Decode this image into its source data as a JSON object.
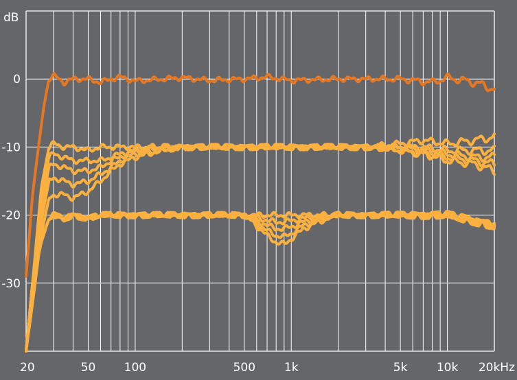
{
  "chart_data": {
    "type": "line",
    "title": "",
    "xlabel": "",
    "ylabel": "dB",
    "x_scale": "log",
    "xlim": [
      20,
      20000
    ],
    "ylim": [
      -40,
      10
    ],
    "grid": true,
    "x_ticks": [
      {
        "value": 20,
        "label": "20"
      },
      {
        "value": 50,
        "label": "50"
      },
      {
        "value": 100,
        "label": "100"
      },
      {
        "value": 500,
        "label": "500"
      },
      {
        "value": 1000,
        "label": "1k"
      },
      {
        "value": 5000,
        "label": "5k"
      },
      {
        "value": 10000,
        "label": "10k"
      },
      {
        "value": 20000,
        "label": "20kHz"
      }
    ],
    "y_ticks": [
      {
        "value": 0,
        "label": "0"
      },
      {
        "value": -10,
        "label": "-10"
      },
      {
        "value": -20,
        "label": "-20"
      },
      {
        "value": -30,
        "label": "-30"
      }
    ],
    "colors": {
      "background": "#64666a",
      "grid": "#ffffff",
      "series_dark": "#e87722",
      "series_light": "#fbb040"
    },
    "series": [
      {
        "color": "dark",
        "x": [
          20,
          22,
          24,
          26,
          28,
          30,
          35,
          40,
          50,
          60,
          70,
          80,
          100,
          150,
          200,
          300,
          500,
          700,
          1000,
          2000,
          5000,
          8000,
          10000,
          15000,
          20000
        ],
        "y": [
          -29,
          -17,
          -10,
          -4,
          0,
          0.5,
          -0.5,
          0,
          0,
          -0.5,
          0,
          0.3,
          -0.3,
          0,
          0.2,
          -0.2,
          0,
          0.3,
          -0.2,
          0,
          0,
          -0.5,
          0.2,
          -0.5,
          -1.5
        ]
      },
      {
        "color": "light",
        "x": [
          20,
          22,
          25,
          28,
          30,
          35,
          40,
          50,
          60,
          70,
          80,
          100,
          150,
          200,
          300,
          500,
          1000,
          2000,
          3000,
          5000,
          7000,
          10000,
          15000,
          20000
        ],
        "y": [
          -40,
          -30,
          -16,
          -10,
          -9.5,
          -10,
          -10,
          -10.5,
          -10,
          -10,
          -10,
          -10,
          -10,
          -10,
          -10,
          -10,
          -10,
          -10,
          -10,
          -9.5,
          -9,
          -9.5,
          -9,
          -8.5
        ]
      },
      {
        "color": "light",
        "x": [
          20,
          22,
          25,
          28,
          30,
          35,
          40,
          50,
          60,
          70,
          80,
          100,
          150,
          200,
          300,
          500,
          1000,
          2000,
          3000,
          5000,
          7000,
          10000,
          15000,
          20000
        ],
        "y": [
          -40,
          -30,
          -17,
          -11.5,
          -11,
          -11.5,
          -12,
          -12,
          -12,
          -11.5,
          -11,
          -10.5,
          -10,
          -10,
          -10,
          -10,
          -10,
          -10,
          -10,
          -10,
          -10,
          -10.5,
          -10.5,
          -10.5
        ]
      },
      {
        "color": "light",
        "x": [
          20,
          22,
          25,
          28,
          30,
          35,
          40,
          50,
          60,
          70,
          80,
          100,
          150,
          200,
          300,
          500,
          1000,
          2000,
          3000,
          5000,
          7000,
          10000,
          15000,
          20000
        ],
        "y": [
          -40,
          -31,
          -19,
          -13,
          -12.5,
          -13,
          -13.5,
          -13.5,
          -13,
          -12,
          -11.5,
          -10.5,
          -10,
          -10,
          -10,
          -10,
          -10,
          -10,
          -10,
          -10,
          -10.5,
          -11,
          -11.5,
          -11.5
        ]
      },
      {
        "color": "light",
        "x": [
          20,
          22,
          25,
          28,
          30,
          35,
          40,
          50,
          60,
          70,
          80,
          100,
          150,
          200,
          300,
          500,
          1000,
          2000,
          3000,
          5000,
          7000,
          10000,
          15000,
          20000
        ],
        "y": [
          -40,
          -32,
          -21,
          -15,
          -14.5,
          -15,
          -15.5,
          -15,
          -14,
          -13,
          -12,
          -11,
          -10.5,
          -10,
          -10,
          -10,
          -10,
          -10,
          -10,
          -10.5,
          -11,
          -11.5,
          -12,
          -12.5
        ]
      },
      {
        "color": "light",
        "x": [
          20,
          22,
          25,
          28,
          30,
          35,
          40,
          50,
          60,
          70,
          80,
          100,
          150,
          200,
          300,
          500,
          1000,
          2000,
          3000,
          5000,
          7000,
          10000,
          15000,
          20000
        ],
        "y": [
          -40,
          -33,
          -23,
          -17.5,
          -17,
          -17,
          -17.5,
          -16.5,
          -15,
          -13.5,
          -12.5,
          -11.5,
          -10.5,
          -10,
          -10,
          -10,
          -10,
          -10,
          -10,
          -10.5,
          -11,
          -12,
          -12.5,
          -13.5
        ]
      },
      {
        "color": "light",
        "x": [
          20,
          22,
          25,
          28,
          30,
          35,
          40,
          50,
          60,
          70,
          80,
          100,
          150,
          200,
          300,
          500,
          600,
          700,
          800,
          900,
          1000,
          1200,
          1500,
          2000,
          3000,
          5000,
          10000,
          20000
        ],
        "y": [
          -40,
          -30,
          -24,
          -20.5,
          -20,
          -20.5,
          -20,
          -20.5,
          -20,
          -20,
          -20,
          -20,
          -20,
          -20,
          -20,
          -20,
          -20,
          -20,
          -20,
          -20,
          -20,
          -20,
          -20,
          -20,
          -20,
          -20,
          -20,
          -21.5
        ]
      },
      {
        "color": "light",
        "x": [
          20,
          22,
          25,
          28,
          30,
          35,
          40,
          50,
          60,
          70,
          80,
          100,
          150,
          200,
          300,
          500,
          600,
          700,
          800,
          900,
          1000,
          1200,
          1500,
          2000,
          3000,
          5000,
          10000,
          20000
        ],
        "y": [
          -40,
          -30,
          -24,
          -20.5,
          -20,
          -20.5,
          -20,
          -20.5,
          -20,
          -20,
          -20,
          -20,
          -20,
          -20,
          -20,
          -20,
          -20.3,
          -20.8,
          -21,
          -21,
          -20.8,
          -20.5,
          -20.2,
          -20,
          -20,
          -20,
          -20,
          -21.5
        ]
      },
      {
        "color": "light",
        "x": [
          20,
          22,
          25,
          28,
          30,
          35,
          40,
          50,
          60,
          70,
          80,
          100,
          150,
          200,
          300,
          500,
          600,
          700,
          800,
          900,
          1000,
          1200,
          1500,
          2000,
          3000,
          5000,
          10000,
          20000
        ],
        "y": [
          -40,
          -30,
          -24,
          -20.5,
          -20,
          -20.5,
          -20,
          -20.5,
          -20,
          -20,
          -20,
          -20,
          -20,
          -20,
          -20,
          -20,
          -20.8,
          -21.5,
          -22,
          -22,
          -21.7,
          -21,
          -20.5,
          -20,
          -20,
          -20,
          -20,
          -21.5
        ]
      },
      {
        "color": "light",
        "x": [
          20,
          22,
          25,
          28,
          30,
          35,
          40,
          50,
          60,
          70,
          80,
          100,
          150,
          200,
          300,
          500,
          600,
          700,
          800,
          900,
          1000,
          1200,
          1500,
          2000,
          3000,
          5000,
          10000,
          20000
        ],
        "y": [
          -40,
          -30,
          -24,
          -20.5,
          -20,
          -20.5,
          -20,
          -20.5,
          -20,
          -20,
          -20,
          -20,
          -20,
          -20,
          -20,
          -20,
          -21.2,
          -22.3,
          -23,
          -23.2,
          -22.7,
          -21.5,
          -20.7,
          -20,
          -20,
          -20,
          -20,
          -21.5
        ]
      },
      {
        "color": "light",
        "x": [
          20,
          22,
          25,
          28,
          30,
          35,
          40,
          50,
          60,
          70,
          80,
          100,
          150,
          200,
          300,
          500,
          600,
          700,
          800,
          900,
          1000,
          1200,
          1500,
          2000,
          3000,
          5000,
          10000,
          20000
        ],
        "y": [
          -40,
          -30,
          -24,
          -20.5,
          -20,
          -20.5,
          -20,
          -20.5,
          -20,
          -20,
          -20,
          -20,
          -20,
          -20,
          -20,
          -20,
          -21.6,
          -23,
          -24,
          -24.3,
          -23.5,
          -22,
          -21,
          -20,
          -20,
          -20,
          -20,
          -21.5
        ]
      }
    ]
  }
}
